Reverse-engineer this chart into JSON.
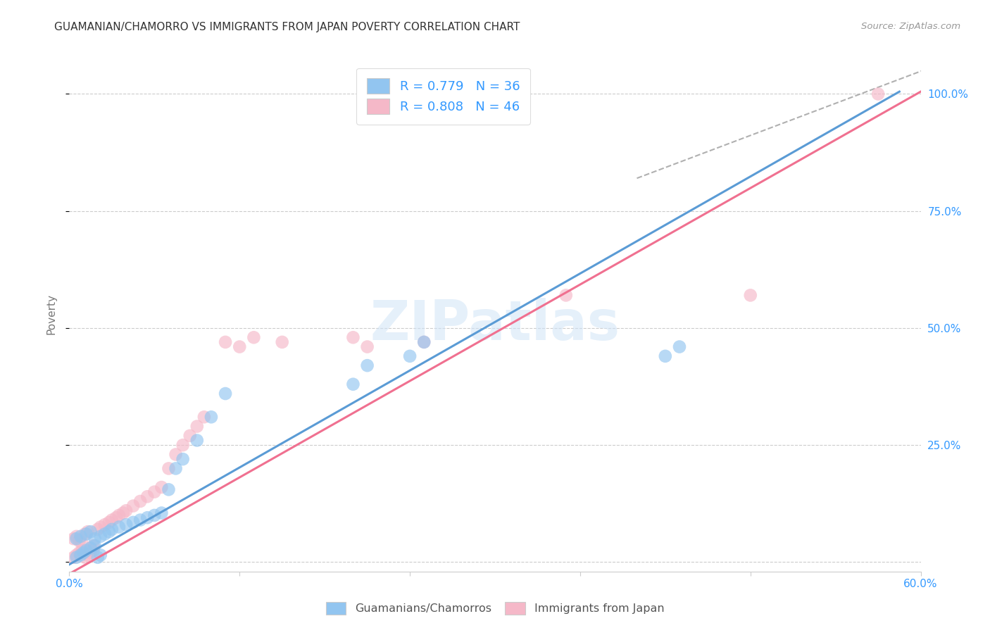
{
  "title": "GUAMANIAN/CHAMORRO VS IMMIGRANTS FROM JAPAN POVERTY CORRELATION CHART",
  "source": "Source: ZipAtlas.com",
  "ylabel": "Poverty",
  "xlim": [
    0.0,
    0.6
  ],
  "ylim": [
    -0.02,
    1.08
  ],
  "grid_color": "#cccccc",
  "background_color": "#ffffff",
  "watermark_text": "ZIPatlas",
  "blue_color": "#92C5F0",
  "pink_color": "#F5B8C8",
  "blue_line_color": "#5A9BD5",
  "pink_line_color": "#F07090",
  "dashed_line_color": "#b0b0b0",
  "R_blue": 0.779,
  "N_blue": 36,
  "R_pink": 0.808,
  "N_pink": 46,
  "legend_label_blue": "Guamanians/Chamorros",
  "legend_label_pink": "Immigrants from Japan",
  "blue_scatter_x": [
    0.005,
    0.008,
    0.01,
    0.012,
    0.015,
    0.018,
    0.02,
    0.022,
    0.005,
    0.008,
    0.012,
    0.015,
    0.018,
    0.022,
    0.025,
    0.028,
    0.03,
    0.035,
    0.04,
    0.045,
    0.05,
    0.055,
    0.06,
    0.065,
    0.07,
    0.075,
    0.08,
    0.09,
    0.1,
    0.11,
    0.2,
    0.21,
    0.24,
    0.25,
    0.42,
    0.43
  ],
  "blue_scatter_y": [
    0.01,
    0.015,
    0.02,
    0.025,
    0.03,
    0.035,
    0.01,
    0.015,
    0.05,
    0.055,
    0.06,
    0.065,
    0.05,
    0.055,
    0.06,
    0.065,
    0.07,
    0.075,
    0.08,
    0.085,
    0.09,
    0.095,
    0.1,
    0.105,
    0.155,
    0.2,
    0.22,
    0.26,
    0.31,
    0.36,
    0.38,
    0.42,
    0.44,
    0.47,
    0.44,
    0.46
  ],
  "pink_scatter_x": [
    0.003,
    0.005,
    0.007,
    0.009,
    0.011,
    0.013,
    0.015,
    0.017,
    0.003,
    0.005,
    0.007,
    0.009,
    0.011,
    0.013,
    0.015,
    0.017,
    0.02,
    0.022,
    0.025,
    0.028,
    0.03,
    0.033,
    0.035,
    0.038,
    0.04,
    0.045,
    0.05,
    0.055,
    0.06,
    0.065,
    0.07,
    0.075,
    0.08,
    0.085,
    0.09,
    0.095,
    0.11,
    0.12,
    0.13,
    0.15,
    0.2,
    0.21,
    0.25,
    0.35,
    0.48,
    0.57
  ],
  "pink_scatter_y": [
    0.01,
    0.015,
    0.02,
    0.025,
    0.01,
    0.015,
    0.02,
    0.025,
    0.05,
    0.055,
    0.045,
    0.04,
    0.06,
    0.065,
    0.03,
    0.035,
    0.07,
    0.075,
    0.08,
    0.085,
    0.09,
    0.095,
    0.1,
    0.105,
    0.11,
    0.12,
    0.13,
    0.14,
    0.15,
    0.16,
    0.2,
    0.23,
    0.25,
    0.27,
    0.29,
    0.31,
    0.47,
    0.46,
    0.48,
    0.47,
    0.48,
    0.46,
    0.47,
    0.57,
    0.57,
    1.0
  ]
}
